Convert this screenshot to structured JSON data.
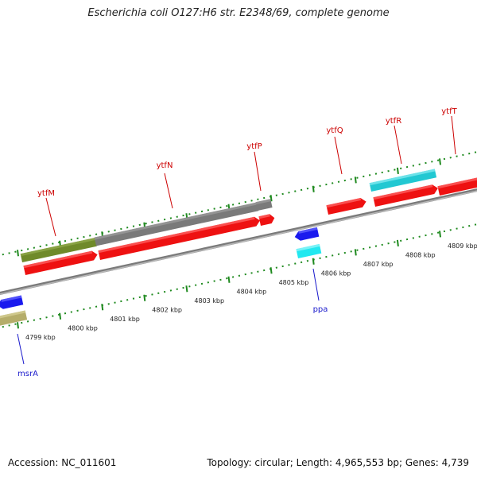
{
  "title": "Escherichia coli O127:H6 str. E2348/69, complete genome",
  "footer": {
    "accession": "Accession: NC_011601",
    "topology": "Topology: circular; Length: 4,965,553 bp; Genes: 4,739"
  },
  "colors": {
    "background": "#ffffff",
    "backbone": "#888888",
    "tick": "#1f8a1f",
    "cds": "#ee1111",
    "gene_label_top": "#cc0000",
    "gene_label_bottom": "#1a1acc",
    "gray_feature": "#7a7a7a",
    "olive_feature": "#6f8a2a",
    "cyan_feature": "#22c8d2",
    "blue_feature": "#1a1aee",
    "khaki_feature": "#b5ad6a"
  },
  "scale_labels": [
    "4799 kbp",
    "4800 kbp",
    "4801 kbp",
    "4802 kbp",
    "4803 kbp",
    "4804 kbp",
    "4805 kbp",
    "4806 kbp",
    "4807 kbp",
    "4808 kbp",
    "4809 kbp"
  ],
  "gene_labels_top": [
    "ytfM",
    "ytfN",
    "ytfP",
    "ytfQ",
    "ytfR",
    "ytfT"
  ],
  "gene_labels_bottom": [
    "msrA",
    "ppa"
  ]
}
